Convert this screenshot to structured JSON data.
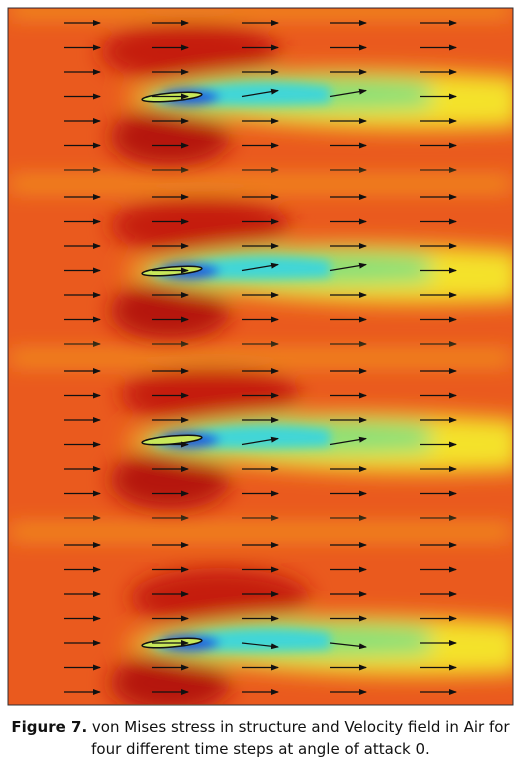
{
  "figure": {
    "label": "Figure 7.",
    "caption": "von Mises stress in structure and Velocity field in Air for four different time steps at angle of attack 0."
  }
}
